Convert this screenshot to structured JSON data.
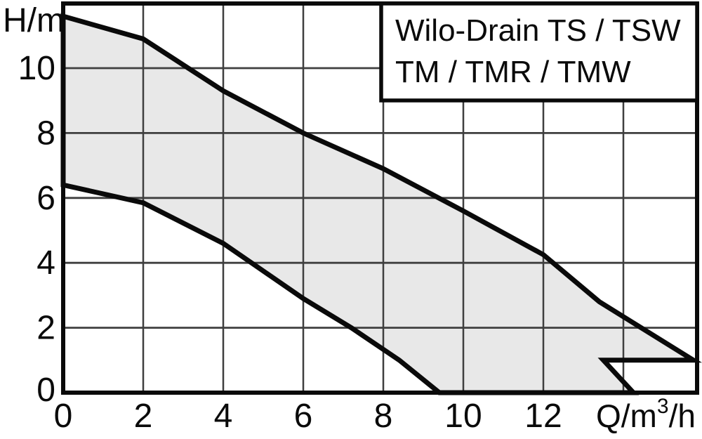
{
  "chart_data": {
    "type": "area",
    "title": "Wilo-Drain TS / TSW TM / TMR / TMW",
    "title_lines": [
      "Wilo-Drain TS / TSW",
      "TM / TMR / TMW"
    ],
    "xlabel": "Q/m³/h",
    "xlabel_parts": {
      "pre": "Q/m",
      "sup": "3",
      "post": "/h"
    },
    "ylabel": "H/m",
    "x_ticks": [
      0,
      2,
      4,
      6,
      8,
      10,
      12
    ],
    "y_ticks": [
      0,
      2,
      4,
      6,
      8,
      10
    ],
    "x_gridlines": [
      2,
      4,
      6,
      8,
      10,
      12,
      14
    ],
    "y_gridlines": [
      2,
      4,
      6,
      8,
      10
    ],
    "xlim": [
      0,
      15.85
    ],
    "ylim": [
      0,
      11.99
    ],
    "grid": true,
    "legend_position": "none",
    "series": [
      {
        "name": "upper-envelope",
        "points": [
          [
            0,
            11.6
          ],
          [
            2,
            10.9
          ],
          [
            4,
            9.3
          ],
          [
            6,
            8.0
          ],
          [
            8,
            6.9
          ],
          [
            10,
            5.6
          ],
          [
            12,
            4.25
          ],
          [
            13.4,
            2.8
          ],
          [
            15.75,
            1.0
          ]
        ]
      },
      {
        "name": "lower-envelope",
        "points": [
          [
            0,
            6.4
          ],
          [
            2,
            5.85
          ],
          [
            4,
            4.6
          ],
          [
            6,
            2.9
          ],
          [
            7.2,
            2.0
          ],
          [
            8.4,
            1.0
          ],
          [
            9.4,
            0
          ]
        ]
      }
    ],
    "region_outline": [
      [
        0,
        11.6
      ],
      [
        2,
        10.9
      ],
      [
        4,
        9.3
      ],
      [
        6,
        8.0
      ],
      [
        8,
        6.9
      ],
      [
        10,
        5.6
      ],
      [
        12,
        4.25
      ],
      [
        13.4,
        2.8
      ],
      [
        15.75,
        1.0
      ],
      [
        13.5,
        1.0
      ],
      [
        14.25,
        0
      ],
      [
        9.4,
        0
      ],
      [
        8.4,
        1.0
      ],
      [
        7.2,
        2.0
      ],
      [
        6,
        2.9
      ],
      [
        4,
        4.6
      ],
      [
        2,
        5.85
      ],
      [
        0,
        6.4
      ]
    ],
    "colors": {
      "band_fill": "#e8e8e8",
      "line": "#0a0a0a",
      "grid": "#3f3f3f",
      "background": "#ffffff",
      "title_box_fill": "#ffffff"
    }
  }
}
